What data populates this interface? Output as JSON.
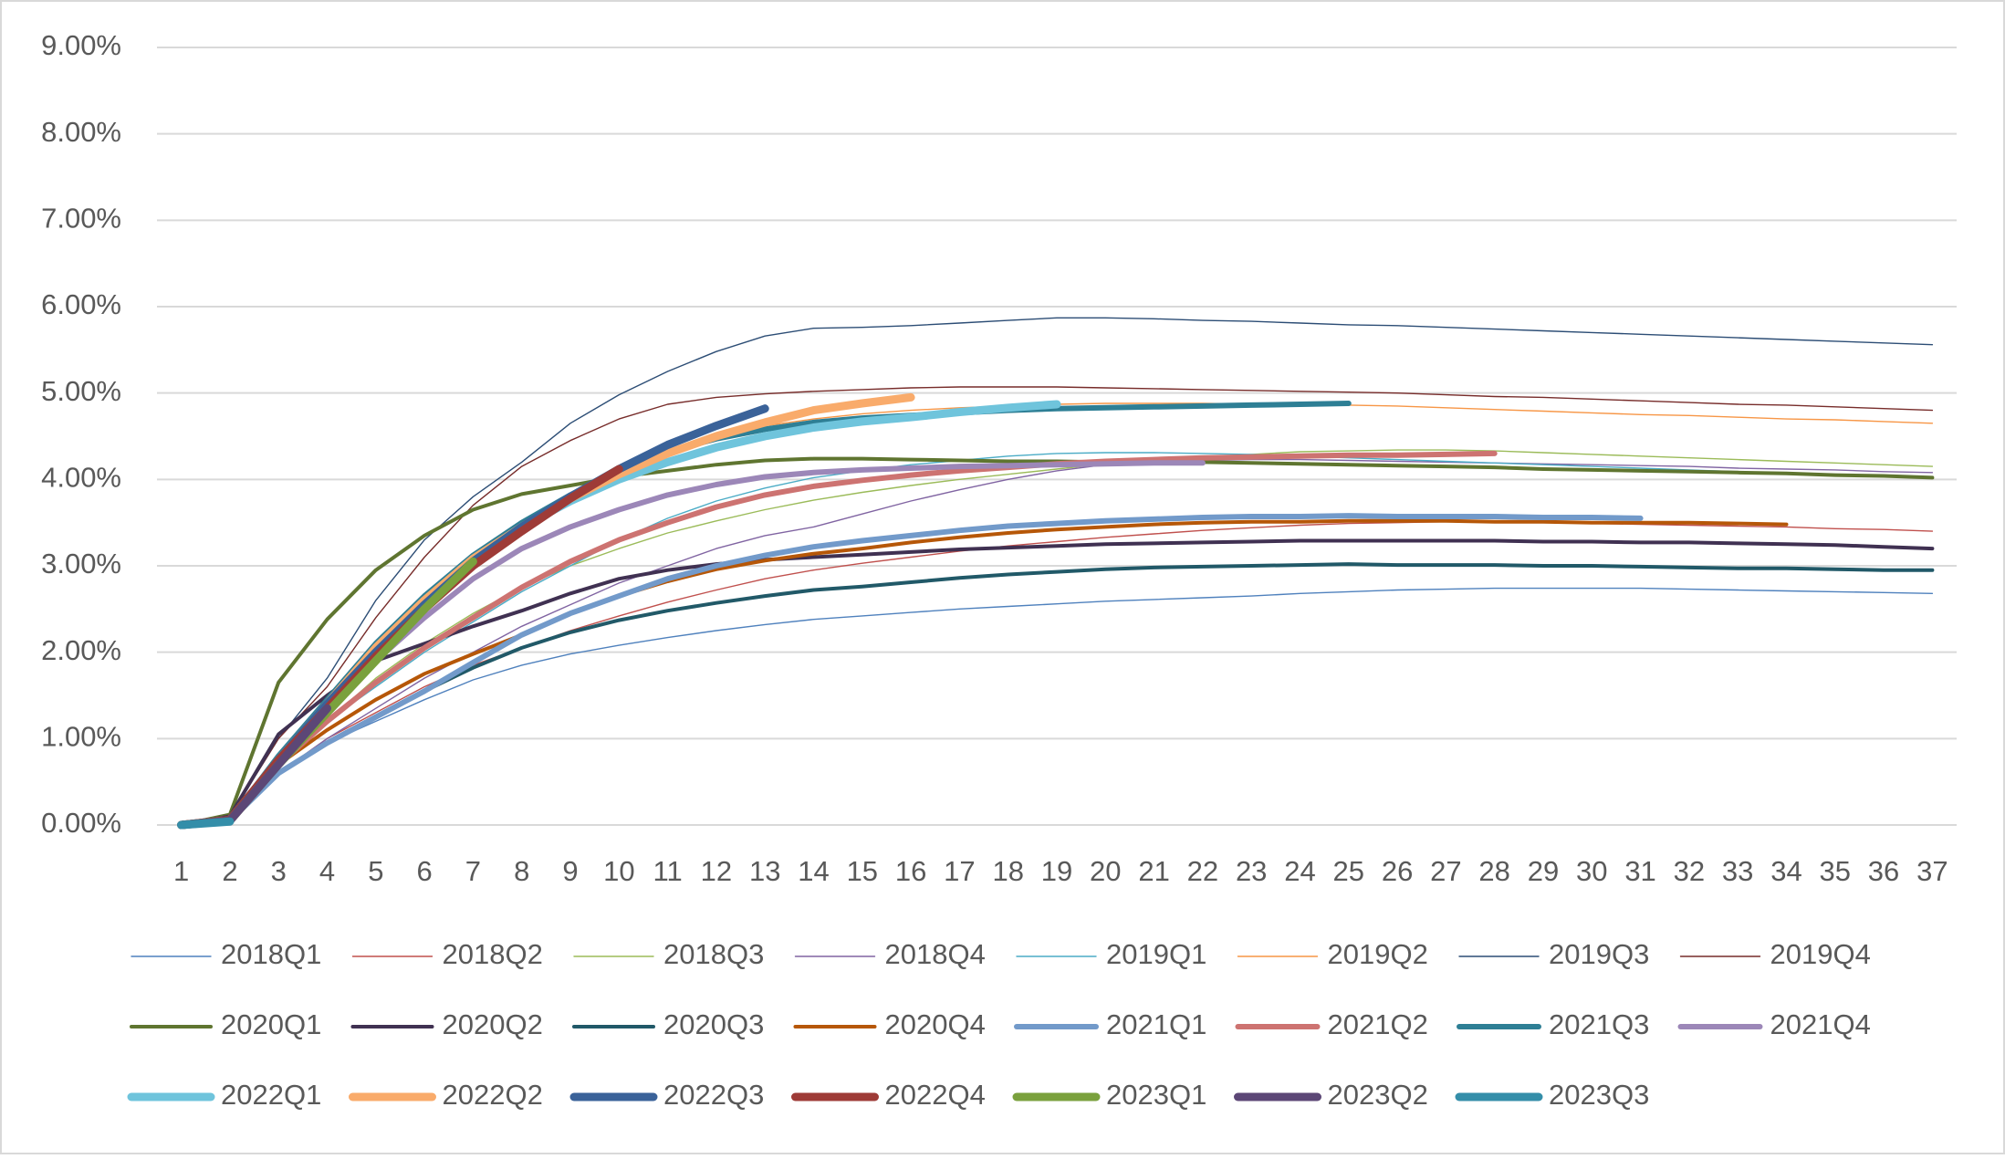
{
  "chart_data": {
    "type": "line",
    "categories": [
      "1",
      "2",
      "3",
      "4",
      "5",
      "6",
      "7",
      "8",
      "9",
      "10",
      "11",
      "12",
      "13",
      "14",
      "15",
      "16",
      "17",
      "18",
      "19",
      "20",
      "21",
      "22",
      "23",
      "24",
      "25",
      "26",
      "27",
      "28",
      "29",
      "30",
      "31",
      "32",
      "33",
      "34",
      "35",
      "36",
      "37"
    ],
    "ylim": [
      0,
      9
    ],
    "yticks": [
      {
        "value": 0,
        "label": "0.00%"
      },
      {
        "value": 1,
        "label": "1.00%"
      },
      {
        "value": 2,
        "label": "2.00%"
      },
      {
        "value": 3,
        "label": "3.00%"
      },
      {
        "value": 4,
        "label": "4.00%"
      },
      {
        "value": 5,
        "label": "5.00%"
      },
      {
        "value": 6,
        "label": "6.00%"
      },
      {
        "value": 7,
        "label": "7.00%"
      },
      {
        "value": 8,
        "label": "8.00%"
      },
      {
        "value": 9,
        "label": "9.00%"
      }
    ],
    "grid": true,
    "legend": "bottom",
    "series": [
      {
        "name": "2018Q1",
        "color": "#4f81bd",
        "width": 1.4,
        "values": [
          0,
          0.05,
          0.6,
          0.95,
          1.2,
          1.45,
          1.68,
          1.85,
          1.98,
          2.08,
          2.17,
          2.25,
          2.32,
          2.38,
          2.42,
          2.46,
          2.5,
          2.53,
          2.56,
          2.59,
          2.61,
          2.63,
          2.65,
          2.68,
          2.7,
          2.72,
          2.73,
          2.74,
          2.74,
          2.74,
          2.74,
          2.73,
          2.72,
          2.71,
          2.7,
          2.69,
          2.68
        ]
      },
      {
        "name": "2018Q2",
        "color": "#c0504d",
        "width": 1.4,
        "values": [
          0,
          0.05,
          0.6,
          1.0,
          1.3,
          1.6,
          1.85,
          2.05,
          2.25,
          2.42,
          2.58,
          2.72,
          2.85,
          2.95,
          3.03,
          3.1,
          3.17,
          3.23,
          3.28,
          3.33,
          3.37,
          3.41,
          3.44,
          3.47,
          3.49,
          3.5,
          3.51,
          3.51,
          3.5,
          3.49,
          3.48,
          3.47,
          3.46,
          3.45,
          3.43,
          3.42,
          3.4
        ]
      },
      {
        "name": "2018Q3",
        "color": "#9bbb59",
        "width": 1.4,
        "values": [
          0,
          0.06,
          0.7,
          1.2,
          1.7,
          2.1,
          2.45,
          2.75,
          3.0,
          3.2,
          3.38,
          3.52,
          3.65,
          3.76,
          3.85,
          3.93,
          4.0,
          4.06,
          4.12,
          4.18,
          4.22,
          4.26,
          4.29,
          4.32,
          4.33,
          4.34,
          4.34,
          4.33,
          4.31,
          4.29,
          4.27,
          4.25,
          4.23,
          4.21,
          4.19,
          4.17,
          4.15
        ]
      },
      {
        "name": "2018Q4",
        "color": "#8064a2",
        "width": 1.4,
        "values": [
          0,
          0.05,
          0.6,
          1.0,
          1.35,
          1.7,
          2.0,
          2.3,
          2.55,
          2.8,
          3.0,
          3.2,
          3.35,
          3.45,
          3.6,
          3.75,
          3.88,
          4.0,
          4.1,
          4.17,
          4.2,
          4.22,
          4.23,
          4.23,
          4.22,
          4.21,
          4.2,
          4.19,
          4.18,
          4.17,
          4.16,
          4.15,
          4.13,
          4.12,
          4.11,
          4.09,
          4.08
        ]
      },
      {
        "name": "2019Q1",
        "color": "#4bacc6",
        "width": 1.4,
        "values": [
          0,
          0.06,
          0.7,
          1.2,
          1.6,
          2.0,
          2.35,
          2.7,
          3.0,
          3.3,
          3.55,
          3.75,
          3.9,
          4.02,
          4.1,
          4.17,
          4.22,
          4.27,
          4.3,
          4.31,
          4.31,
          4.3,
          4.29,
          4.27,
          4.25,
          4.23,
          4.21,
          4.19,
          4.17,
          4.15,
          4.13,
          4.11,
          4.09,
          4.07,
          4.05,
          4.03,
          4.02
        ]
      },
      {
        "name": "2019Q2",
        "color": "#f79646",
        "width": 1.4,
        "values": [
          0,
          0.07,
          0.8,
          1.4,
          2.0,
          2.5,
          3.0,
          3.4,
          3.75,
          4.05,
          4.3,
          4.5,
          4.62,
          4.7,
          4.76,
          4.8,
          4.83,
          4.85,
          4.87,
          4.88,
          4.88,
          4.88,
          4.87,
          4.87,
          4.86,
          4.85,
          4.83,
          4.81,
          4.79,
          4.77,
          4.75,
          4.74,
          4.72,
          4.7,
          4.69,
          4.67,
          4.65
        ]
      },
      {
        "name": "2019Q3",
        "color": "#2c4d75",
        "width": 1.4,
        "values": [
          0,
          0.1,
          1.0,
          1.7,
          2.6,
          3.3,
          3.8,
          4.2,
          4.65,
          4.98,
          5.25,
          5.48,
          5.66,
          5.75,
          5.76,
          5.78,
          5.81,
          5.84,
          5.87,
          5.87,
          5.86,
          5.84,
          5.83,
          5.81,
          5.79,
          5.78,
          5.76,
          5.74,
          5.72,
          5.7,
          5.68,
          5.66,
          5.64,
          5.62,
          5.6,
          5.58,
          5.56
        ]
      },
      {
        "name": "2019Q4",
        "color": "#772c2a",
        "width": 1.4,
        "values": [
          0,
          0.1,
          1.0,
          1.6,
          2.4,
          3.1,
          3.7,
          4.15,
          4.45,
          4.7,
          4.87,
          4.95,
          4.99,
          5.02,
          5.04,
          5.06,
          5.07,
          5.07,
          5.07,
          5.06,
          5.05,
          5.04,
          5.03,
          5.02,
          5.01,
          5.0,
          4.98,
          4.96,
          4.95,
          4.93,
          4.91,
          4.89,
          4.87,
          4.86,
          4.84,
          4.82,
          4.8
        ]
      },
      {
        "name": "2020Q1",
        "color": "#5f7530",
        "width": 4,
        "values": [
          0,
          0.12,
          1.65,
          2.38,
          2.95,
          3.35,
          3.65,
          3.83,
          3.93,
          4.03,
          4.1,
          4.17,
          4.22,
          4.24,
          4.24,
          4.23,
          4.22,
          4.21,
          4.21,
          4.2,
          4.2,
          4.2,
          4.19,
          4.18,
          4.17,
          4.16,
          4.15,
          4.14,
          4.12,
          4.11,
          4.1,
          4.09,
          4.08,
          4.07,
          4.05,
          4.04,
          4.02
        ]
      },
      {
        "name": "2020Q2",
        "color": "#403152",
        "width": 4,
        "values": [
          0,
          0.1,
          1.05,
          1.5,
          1.9,
          2.1,
          2.3,
          2.48,
          2.68,
          2.85,
          2.95,
          3.02,
          3.07,
          3.1,
          3.13,
          3.16,
          3.19,
          3.21,
          3.23,
          3.25,
          3.26,
          3.27,
          3.28,
          3.29,
          3.29,
          3.29,
          3.29,
          3.29,
          3.28,
          3.28,
          3.27,
          3.27,
          3.26,
          3.25,
          3.24,
          3.22,
          3.2
        ]
      },
      {
        "name": "2020Q3",
        "color": "#215968",
        "width": 4,
        "values": [
          0,
          0.05,
          0.6,
          0.95,
          1.25,
          1.55,
          1.82,
          2.05,
          2.23,
          2.37,
          2.48,
          2.57,
          2.65,
          2.72,
          2.76,
          2.81,
          2.86,
          2.9,
          2.93,
          2.96,
          2.98,
          2.99,
          3.0,
          3.01,
          3.02,
          3.01,
          3.01,
          3.01,
          3.0,
          3.0,
          2.99,
          2.98,
          2.97,
          2.97,
          2.96,
          2.95,
          2.95
        ]
      },
      {
        "name": "2020Q4",
        "color": "#b65708",
        "width": 4,
        "values": [
          0,
          0.05,
          0.7,
          1.1,
          1.45,
          1.75,
          1.98,
          2.2,
          2.45,
          2.65,
          2.82,
          2.96,
          3.06,
          3.14,
          3.2,
          3.27,
          3.33,
          3.38,
          3.42,
          3.45,
          3.48,
          3.5,
          3.51,
          3.51,
          3.52,
          3.52,
          3.52,
          3.51,
          3.51,
          3.5,
          3.5,
          3.5,
          3.49,
          3.48,
          null,
          null,
          null
        ]
      },
      {
        "name": "2021Q1",
        "color": "#729aca",
        "width": 6,
        "values": [
          0,
          0.05,
          0.6,
          0.95,
          1.25,
          1.55,
          1.88,
          2.2,
          2.45,
          2.65,
          2.85,
          3.0,
          3.12,
          3.22,
          3.29,
          3.35,
          3.41,
          3.46,
          3.49,
          3.52,
          3.54,
          3.56,
          3.57,
          3.57,
          3.58,
          3.57,
          3.57,
          3.57,
          3.56,
          3.56,
          3.55,
          null,
          null,
          null,
          null,
          null,
          null
        ]
      },
      {
        "name": "2021Q2",
        "color": "#cd7371",
        "width": 6,
        "values": [
          0,
          0.05,
          0.7,
          1.2,
          1.65,
          2.05,
          2.4,
          2.75,
          3.05,
          3.3,
          3.5,
          3.68,
          3.82,
          3.92,
          3.99,
          4.05,
          4.1,
          4.14,
          4.18,
          4.21,
          4.23,
          4.25,
          4.26,
          4.27,
          4.28,
          4.28,
          4.29,
          4.3,
          null,
          null,
          null,
          null,
          null,
          null,
          null,
          null,
          null
        ]
      },
      {
        "name": "2021Q3",
        "color": "#2e7f95",
        "width": 6,
        "values": [
          0,
          0.06,
          0.8,
          1.45,
          2.1,
          2.65,
          3.12,
          3.5,
          3.82,
          4.1,
          4.32,
          4.47,
          4.58,
          4.66,
          4.71,
          4.74,
          4.77,
          4.8,
          4.82,
          4.83,
          4.84,
          4.85,
          4.86,
          4.87,
          4.88,
          null,
          null,
          null,
          null,
          null,
          null,
          null,
          null,
          null,
          null,
          null,
          null
        ]
      },
      {
        "name": "2021Q4",
        "color": "#9c87b8",
        "width": 6,
        "values": [
          0,
          0.05,
          0.7,
          1.3,
          1.9,
          2.4,
          2.85,
          3.2,
          3.45,
          3.65,
          3.82,
          3.94,
          4.03,
          4.08,
          4.11,
          4.13,
          4.15,
          4.16,
          4.17,
          4.18,
          4.19,
          4.19,
          null,
          null,
          null,
          null,
          null,
          null,
          null,
          null,
          null,
          null,
          null,
          null,
          null,
          null,
          null
        ]
      },
      {
        "name": "2022Q1",
        "color": "#6fc4dc",
        "width": 9,
        "values": [
          0,
          0.06,
          0.75,
          1.4,
          2.05,
          2.6,
          3.08,
          3.45,
          3.75,
          4.0,
          4.2,
          4.37,
          4.5,
          4.6,
          4.67,
          4.72,
          4.78,
          4.83,
          4.87,
          null,
          null,
          null,
          null,
          null,
          null,
          null,
          null,
          null,
          null,
          null,
          null,
          null,
          null,
          null,
          null,
          null,
          null
        ]
      },
      {
        "name": "2022Q2",
        "color": "#f9ab6b",
        "width": 9,
        "values": [
          0,
          0.06,
          0.75,
          1.4,
          2.05,
          2.6,
          3.08,
          3.45,
          3.78,
          4.06,
          4.3,
          4.5,
          4.66,
          4.8,
          4.88,
          4.95,
          null,
          null,
          null,
          null,
          null,
          null,
          null,
          null,
          null,
          null,
          null,
          null,
          null,
          null,
          null,
          null,
          null,
          null,
          null,
          null,
          null
        ]
      },
      {
        "name": "2022Q3",
        "color": "#3a6299",
        "width": 9,
        "values": [
          0,
          0.06,
          0.75,
          1.4,
          2.0,
          2.55,
          3.05,
          3.45,
          3.8,
          4.12,
          4.4,
          4.62,
          4.82,
          null,
          null,
          null,
          null,
          null,
          null,
          null,
          null,
          null,
          null,
          null,
          null,
          null,
          null,
          null,
          null,
          null,
          null,
          null,
          null,
          null,
          null,
          null,
          null
        ]
      },
      {
        "name": "2022Q4",
        "color": "#9e3b37",
        "width": 9,
        "values": [
          0,
          0.06,
          0.75,
          1.35,
          1.95,
          2.5,
          3.0,
          3.4,
          3.78,
          4.12,
          null,
          null,
          null,
          null,
          null,
          null,
          null,
          null,
          null,
          null,
          null,
          null,
          null,
          null,
          null,
          null,
          null,
          null,
          null,
          null,
          null,
          null,
          null,
          null,
          null,
          null,
          null
        ]
      },
      {
        "name": "2023Q1",
        "color": "#7aa13d",
        "width": 9,
        "values": [
          0,
          0.05,
          0.7,
          1.3,
          1.9,
          2.5,
          3.05,
          null,
          null,
          null,
          null,
          null,
          null,
          null,
          null,
          null,
          null,
          null,
          null,
          null,
          null,
          null,
          null,
          null,
          null,
          null,
          null,
          null,
          null,
          null,
          null,
          null,
          null,
          null,
          null,
          null,
          null
        ]
      },
      {
        "name": "2023Q2",
        "color": "#5c4776",
        "width": 9,
        "values": [
          0,
          0.05,
          0.7,
          1.35,
          null,
          null,
          null,
          null,
          null,
          null,
          null,
          null,
          null,
          null,
          null,
          null,
          null,
          null,
          null,
          null,
          null,
          null,
          null,
          null,
          null,
          null,
          null,
          null,
          null,
          null,
          null,
          null,
          null,
          null,
          null,
          null,
          null
        ]
      },
      {
        "name": "2023Q3",
        "color": "#348ea9",
        "width": 9,
        "values": [
          0,
          0.04,
          null,
          null,
          null,
          null,
          null,
          null,
          null,
          null,
          null,
          null,
          null,
          null,
          null,
          null,
          null,
          null,
          null,
          null,
          null,
          null,
          null,
          null,
          null,
          null,
          null,
          null,
          null,
          null,
          null,
          null,
          null,
          null,
          null,
          null,
          null
        ]
      }
    ]
  }
}
